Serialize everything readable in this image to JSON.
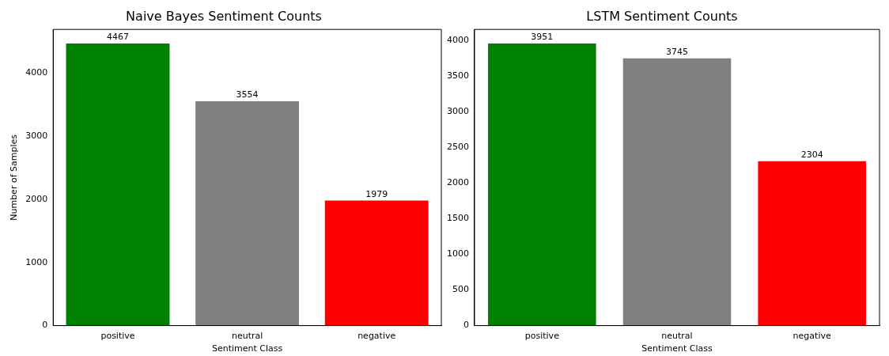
{
  "chart_data": [
    {
      "type": "bar",
      "title": "Naive Bayes Sentiment Counts",
      "xlabel": "Sentiment Class",
      "ylabel": "Number of Samples",
      "categories": [
        "positive",
        "neutral",
        "negative"
      ],
      "values": [
        4467,
        3554,
        1979
      ],
      "colors": [
        "#008000",
        "#808080",
        "#ff0000"
      ],
      "ylim": [
        0,
        4690
      ],
      "yticks": [
        0,
        1000,
        2000,
        3000,
        4000
      ],
      "data_labels": true,
      "grid": false,
      "legend": false
    },
    {
      "type": "bar",
      "title": "LSTM Sentiment Counts",
      "xlabel": "Sentiment Class",
      "categories": [
        "positive",
        "neutral",
        "negative"
      ],
      "values": [
        3951,
        3745,
        2304
      ],
      "colors": [
        "#008000",
        "#808080",
        "#ff0000"
      ],
      "ylim": [
        0,
        4149
      ],
      "yticks": [
        0,
        500,
        1000,
        1500,
        2000,
        2500,
        3000,
        3500,
        4000
      ],
      "data_labels": true,
      "grid": false,
      "legend": false
    }
  ]
}
